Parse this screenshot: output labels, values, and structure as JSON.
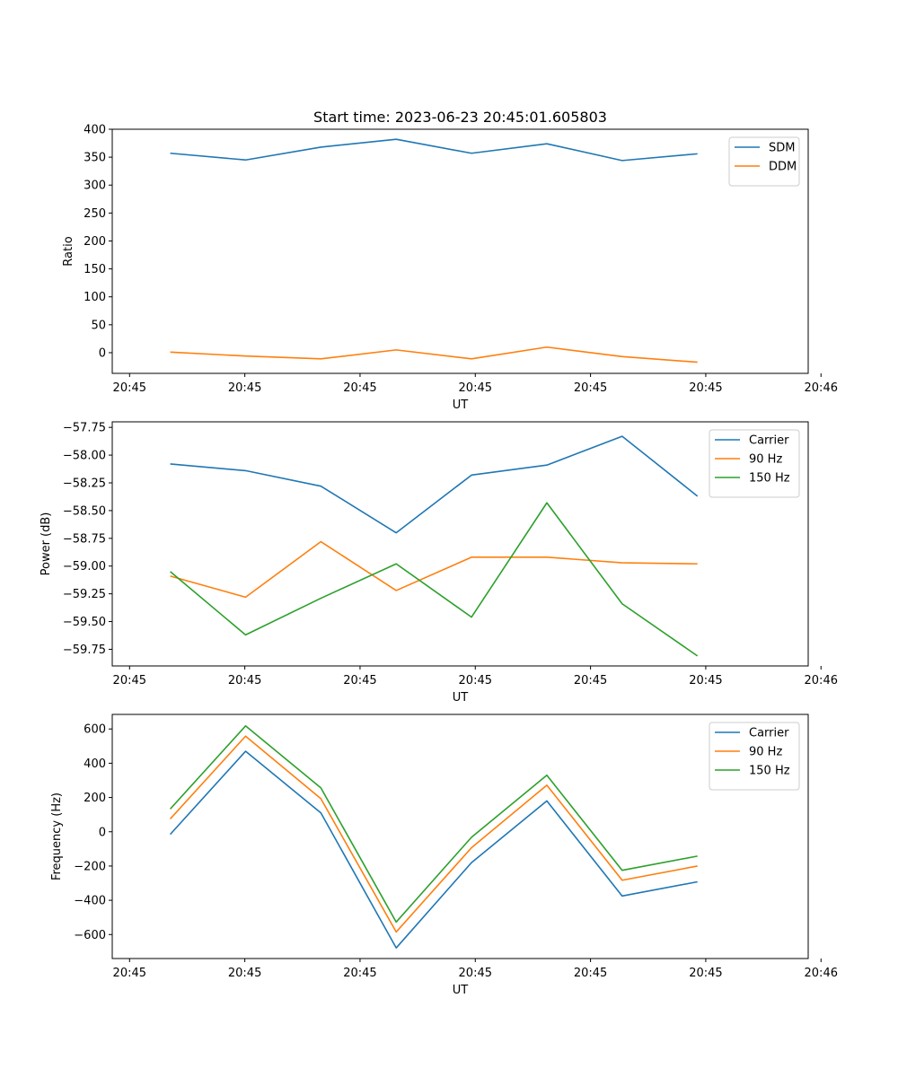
{
  "figure": {
    "title": "Start time: 2023-06-23 20:45:01.605803",
    "colors": {
      "c0": "#1f77b4",
      "c1": "#ff7f0e",
      "c2": "#2ca02c"
    }
  },
  "chart_data": [
    {
      "type": "line",
      "title": "Start time: 2023-06-23 20:45:01.605803",
      "xlabel": "UT",
      "ylabel": "Ratio",
      "x": [
        1,
        2,
        3,
        4,
        5,
        6,
        7,
        8
      ],
      "xlim": [
        0.23,
        9.47
      ],
      "xticks": [
        0.46,
        1.99,
        3.52,
        5.05,
        6.58,
        8.11,
        9.64
      ],
      "xtick_labels": [
        "20:45",
        "20:45",
        "20:45",
        "20:45",
        "20:45",
        "20:45",
        "20:46"
      ],
      "ylim": [
        -37,
        400
      ],
      "yticks": [
        0,
        50,
        100,
        150,
        200,
        250,
        300,
        350,
        400
      ],
      "ytick_labels": [
        "0",
        "50",
        "100",
        "150",
        "200",
        "250",
        "300",
        "350",
        "400"
      ],
      "legend": "top-right",
      "grid": false,
      "series": [
        {
          "name": "SDM",
          "color": "#1f77b4",
          "values": [
            357,
            345,
            368,
            382,
            357,
            374,
            344,
            356
          ]
        },
        {
          "name": "DDM",
          "color": "#ff7f0e",
          "values": [
            1,
            -6,
            -11,
            5,
            -11,
            10,
            -7,
            -17
          ]
        }
      ]
    },
    {
      "type": "line",
      "xlabel": "UT",
      "ylabel": "Power (dB)",
      "x": [
        1,
        2,
        3,
        4,
        5,
        6,
        7,
        8
      ],
      "xlim": [
        0.23,
        9.47
      ],
      "xticks": [
        0.46,
        1.99,
        3.52,
        5.05,
        6.58,
        8.11,
        9.64
      ],
      "xtick_labels": [
        "20:45",
        "20:45",
        "20:45",
        "20:45",
        "20:45",
        "20:45",
        "20:46"
      ],
      "ylim": [
        -59.9,
        -57.7
      ],
      "yticks": [
        -59.75,
        -59.5,
        -59.25,
        -59.0,
        -58.75,
        -58.5,
        -58.25,
        -58.0,
        -57.75
      ],
      "ytick_labels": [
        "−59.75",
        "−59.50",
        "−59.25",
        "−59.00",
        "−58.75",
        "−58.50",
        "−58.25",
        "−58.00",
        "−57.75"
      ],
      "legend": "top-right",
      "grid": false,
      "series": [
        {
          "name": "Carrier",
          "color": "#1f77b4",
          "values": [
            -58.08,
            -58.14,
            -58.28,
            -58.7,
            -58.18,
            -58.09,
            -57.83,
            -58.37
          ]
        },
        {
          "name": "90 Hz",
          "color": "#ff7f0e",
          "values": [
            -59.09,
            -59.28,
            -58.78,
            -59.22,
            -58.92,
            -58.92,
            -58.97,
            -58.98
          ]
        },
        {
          "name": "150 Hz",
          "color": "#2ca02c",
          "values": [
            -59.05,
            -59.62,
            -59.29,
            -58.98,
            -59.46,
            -58.43,
            -59.34,
            -59.81
          ]
        }
      ]
    },
    {
      "type": "line",
      "xlabel": "UT",
      "ylabel": "Frequency (Hz)",
      "x": [
        1,
        2,
        3,
        4,
        5,
        6,
        7,
        8
      ],
      "xlim": [
        0.23,
        9.47
      ],
      "xticks": [
        0.46,
        1.99,
        3.52,
        5.05,
        6.58,
        8.11,
        9.64
      ],
      "xtick_labels": [
        "20:45",
        "20:45",
        "20:45",
        "20:45",
        "20:45",
        "20:45",
        "20:46"
      ],
      "ylim": [
        -740,
        685
      ],
      "yticks": [
        -600,
        -400,
        -200,
        0,
        200,
        400,
        600
      ],
      "ytick_labels": [
        "−600",
        "−400",
        "−200",
        "0",
        "200",
        "400",
        "600"
      ],
      "legend": "top-right",
      "grid": false,
      "series": [
        {
          "name": "Carrier",
          "color": "#1f77b4",
          "values": [
            -15,
            470,
            110,
            -678,
            -180,
            180,
            -375,
            -292
          ]
        },
        {
          "name": "90 Hz",
          "color": "#ff7f0e",
          "values": [
            75,
            558,
            193,
            -585,
            -93,
            272,
            -283,
            -200
          ]
        },
        {
          "name": "150 Hz",
          "color": "#2ca02c",
          "values": [
            133,
            618,
            256,
            -527,
            -32,
            330,
            -225,
            -142
          ]
        }
      ]
    }
  ]
}
